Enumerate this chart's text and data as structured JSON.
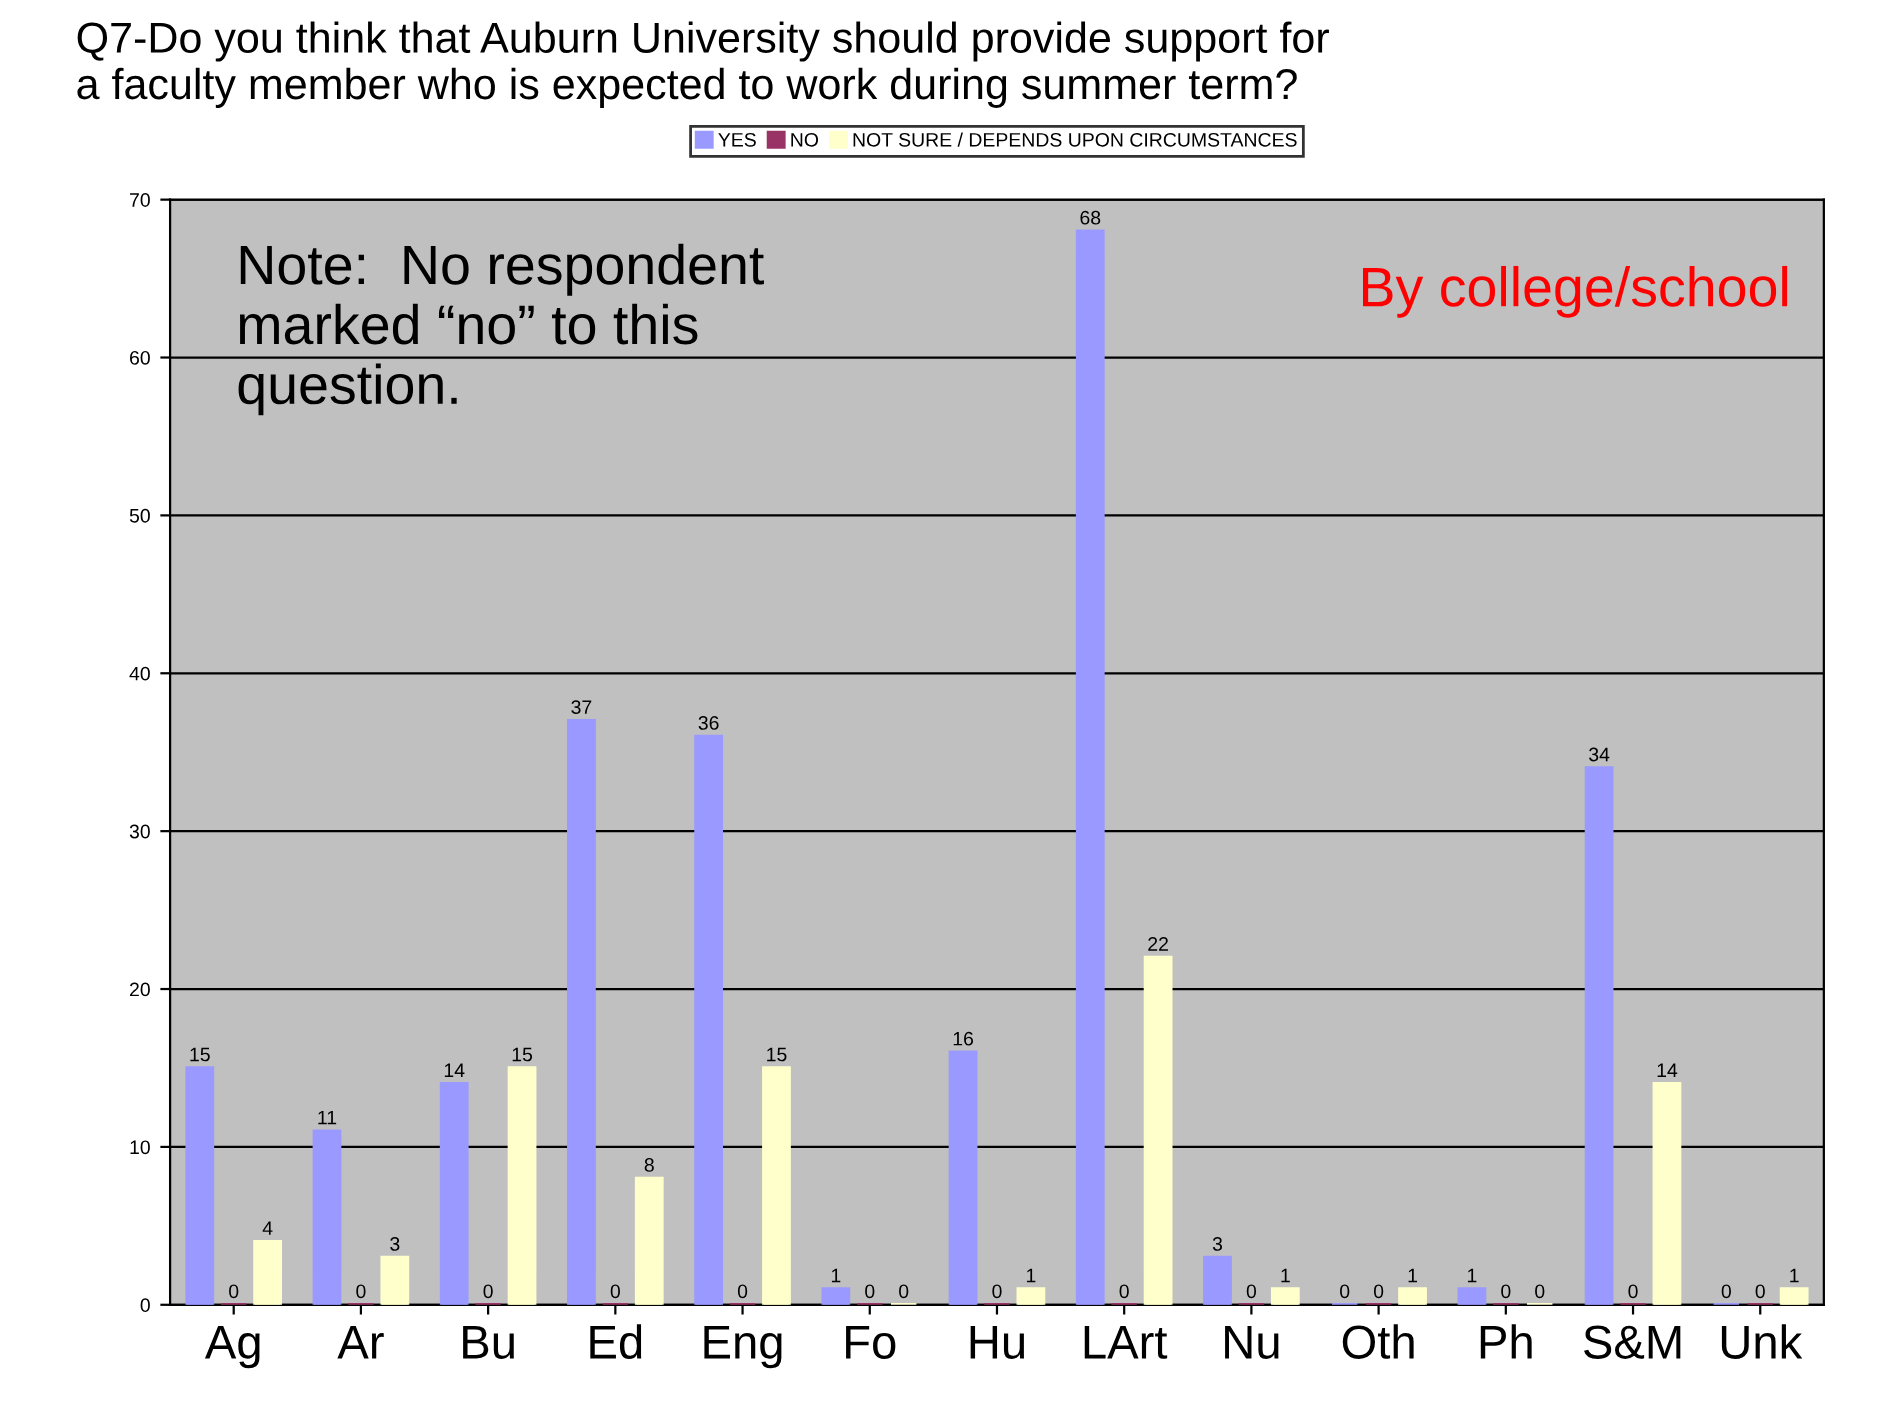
{
  "chart_data": {
    "type": "bar",
    "title": "Q7-Do you think that Auburn University should provide support for\na faculty member who is expected to work during summer term?",
    "categories": [
      "Ag",
      "Ar",
      "Bu",
      "Ed",
      "Eng",
      "Fo",
      "Hu",
      "LArt",
      "Nu",
      "Oth",
      "Ph",
      "S&M",
      "Unk"
    ],
    "series": [
      {
        "name": "YES",
        "color": "#9999ff",
        "values": [
          15,
          11,
          14,
          37,
          36,
          1,
          16,
          68,
          3,
          0,
          1,
          34,
          0
        ]
      },
      {
        "name": "NO",
        "color": "#993366",
        "values": [
          0,
          0,
          0,
          0,
          0,
          0,
          0,
          0,
          0,
          0,
          0,
          0,
          0
        ]
      },
      {
        "name": "NOT SURE / DEPENDS UPON CIRCUMSTANCES",
        "color": "#ffffcc",
        "values": [
          4,
          3,
          15,
          8,
          15,
          0,
          1,
          22,
          1,
          1,
          0,
          14,
          1
        ]
      }
    ],
    "ylim": [
      0,
      70
    ],
    "yticks": [
      0,
      10,
      20,
      30,
      40,
      50,
      60,
      70
    ],
    "grid": "y",
    "legend": "top",
    "data_labels": true,
    "annotations": [
      "Note:  No respondent\nmarked “no” to this\nquestion.",
      "By college/school"
    ]
  }
}
